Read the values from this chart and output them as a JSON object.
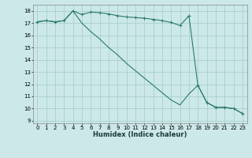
{
  "xlabel": "Humidex (Indice chaleur)",
  "bg_color": "#cce8e8",
  "grid_color": "#aad0d0",
  "line_color": "#2a7a6a",
  "xlim": [
    -0.5,
    23.5
  ],
  "ylim": [
    8.8,
    18.5
  ],
  "yticks": [
    9,
    10,
    11,
    12,
    13,
    14,
    15,
    16,
    17,
    18
  ],
  "xticks": [
    0,
    1,
    2,
    3,
    4,
    5,
    6,
    7,
    8,
    9,
    10,
    11,
    12,
    13,
    14,
    15,
    16,
    17,
    18,
    19,
    20,
    21,
    22,
    23
  ],
  "series1_x": [
    0,
    1,
    2,
    3,
    4,
    5,
    6,
    7,
    8,
    9,
    10,
    11,
    12,
    13,
    14,
    15,
    16,
    17,
    18,
    19,
    20,
    21,
    22,
    23
  ],
  "series1_y": [
    17.1,
    17.2,
    17.1,
    17.2,
    18.0,
    17.7,
    17.9,
    17.85,
    17.75,
    17.6,
    17.5,
    17.45,
    17.4,
    17.3,
    17.2,
    17.05,
    16.8,
    17.6,
    11.9,
    10.5,
    10.1,
    10.1,
    10.0,
    9.6
  ],
  "series2_x": [
    0,
    1,
    2,
    3,
    4,
    5,
    6,
    7,
    8,
    9,
    10,
    11,
    12,
    13,
    14,
    15,
    16,
    17,
    18,
    19,
    20,
    21,
    22,
    23
  ],
  "series2_y": [
    17.1,
    17.2,
    17.1,
    17.2,
    18.0,
    17.0,
    16.3,
    15.7,
    15.0,
    14.4,
    13.7,
    13.1,
    12.5,
    11.9,
    11.3,
    10.7,
    10.3,
    11.2,
    11.9,
    10.5,
    10.1,
    10.1,
    10.0,
    9.6
  ],
  "xlabel_fontsize": 6.0,
  "tick_fontsize": 5.0
}
